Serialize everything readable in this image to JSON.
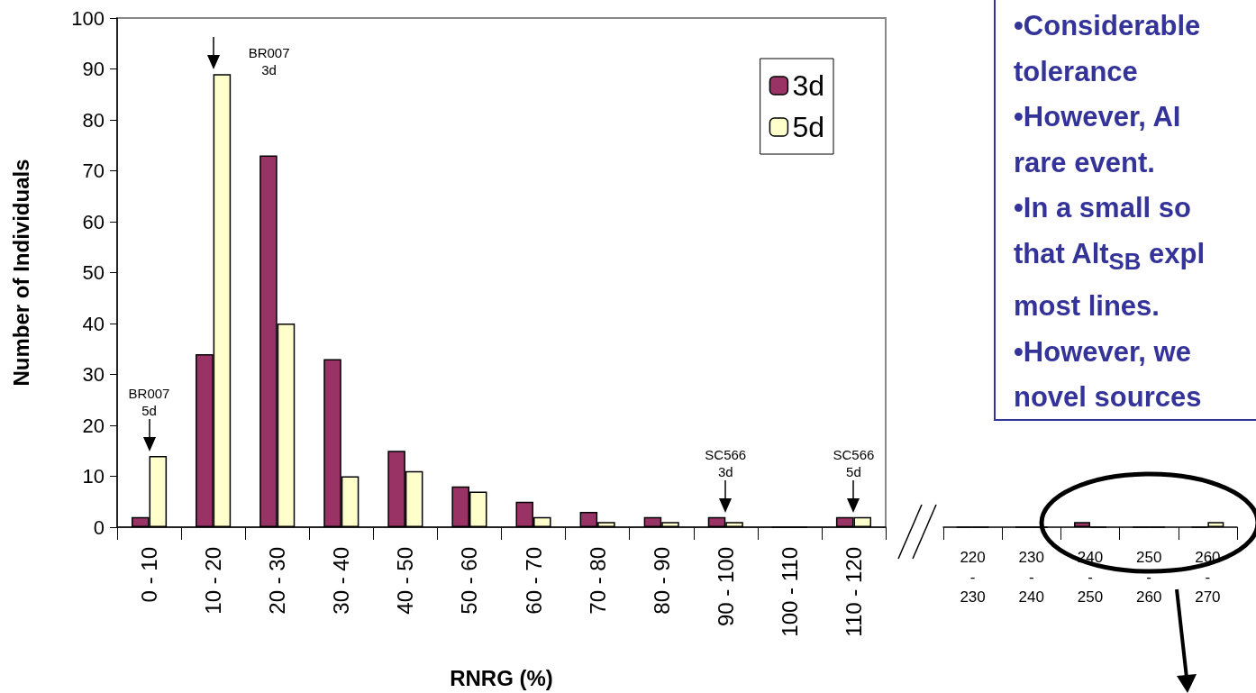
{
  "chart_data": [
    {
      "type": "bar",
      "xlabel": "RNRG (%)",
      "ylabel": "Number of Individuals",
      "categories": [
        "0 - 10",
        "10 - 20",
        "20 - 30",
        "30 - 40",
        "40 - 50",
        "50 - 60",
        "60 - 70",
        "70 - 80",
        "80 - 90",
        "90 - 100",
        "100 - 110",
        "110 - 120"
      ],
      "series": [
        {
          "name": "3d",
          "color": "#993366",
          "values": [
            2,
            34,
            73,
            33,
            15,
            8,
            5,
            3,
            2,
            2,
            0,
            2
          ]
        },
        {
          "name": "5d",
          "color": "#ffffcc",
          "values": [
            14,
            89,
            40,
            10,
            11,
            7,
            2,
            1,
            1,
            1,
            0,
            2
          ]
        }
      ],
      "ylim": [
        0,
        100
      ],
      "yticks": [
        0,
        10,
        20,
        30,
        40,
        50,
        60,
        70,
        80,
        90,
        100
      ],
      "grid": false,
      "legend": "top right",
      "annotations": [
        {
          "text": "BR007 5d",
          "x": "0 - 10",
          "y": 14
        },
        {
          "text": "BR007 3d",
          "x": "10 - 20",
          "y": 89
        },
        {
          "text": "SC566 3d",
          "x": "90 - 100",
          "y": 2
        },
        {
          "text": "SC566 5d",
          "x": "110 - 120",
          "y": 2
        }
      ]
    },
    {
      "type": "bar",
      "categories": [
        "220 - 230",
        "230 - 240",
        "240 - 250",
        "250 - 260",
        "260 - 270"
      ],
      "series": [
        {
          "color": "#993366",
          "values": [
            0,
            0,
            1,
            0,
            0
          ]
        },
        {
          "color": "#ffffcc",
          "values": [
            0,
            0,
            0,
            0,
            1
          ]
        }
      ],
      "ylim": [
        0,
        100
      ],
      "tick_labels": "x",
      "grid": false
    },
    {
      "type": "other",
      "annotations": [
        "•Considerable",
        "tolerance",
        "•However, AI",
        "rare event.",
        "•In a small so",
        "that Alt$_{SB}$ expl",
        "most lines.",
        "•However, we",
        "novel sources"
      ]
    }
  ]
}
